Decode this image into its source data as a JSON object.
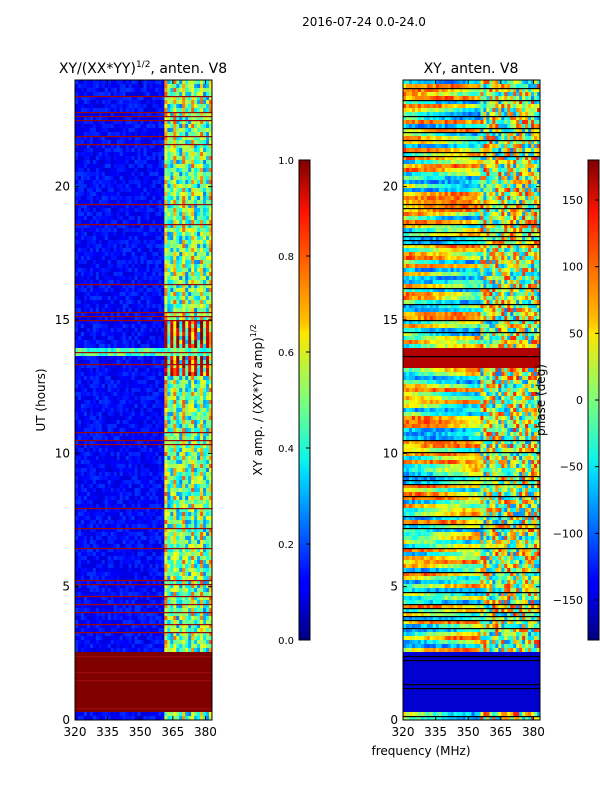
{
  "suptitle": "2016-07-24 0.0-24.0",
  "xlabel_shared": "frequency (MHz)",
  "chart_data": [
    {
      "type": "heatmap",
      "title": "XY/(XX*YY)",
      "title_superscript": "1/2",
      "title_suffix": ", anten. V8",
      "xlabel": "",
      "ylabel": "UT (hours)",
      "xlim": [
        320,
        383
      ],
      "ylim": [
        0,
        24
      ],
      "xticks": [
        320,
        335,
        350,
        365,
        380
      ],
      "yticks": [
        0,
        5,
        10,
        15,
        20
      ],
      "colorbar": {
        "label": "XY amp. / (XX*YY amp)",
        "label_superscript": "1/2",
        "range": [
          0.0,
          1.0
        ],
        "ticks": [
          "0.0",
          "0.2",
          "0.4",
          "0.6",
          "0.8",
          "1.0"
        ],
        "tick_values": [
          0.0,
          0.2,
          0.4,
          0.6,
          0.8,
          1.0
        ]
      }
    },
    {
      "type": "heatmap",
      "title": "XY, anten. V8",
      "xlabel": "frequency (MHz)",
      "ylabel": "",
      "xlim": [
        320,
        383
      ],
      "ylim": [
        0,
        24
      ],
      "xticks": [
        320,
        335,
        350,
        365,
        380
      ],
      "yticks": [
        0,
        5,
        10,
        15,
        20
      ],
      "colorbar": {
        "label": "phase (deg)",
        "range": [
          -180,
          180
        ],
        "ticks": [
          "150",
          "100",
          "50",
          "0",
          "−50",
          "−100",
          "−150"
        ],
        "tick_values": [
          150,
          100,
          50,
          0,
          -50,
          -100,
          -150
        ]
      }
    }
  ]
}
